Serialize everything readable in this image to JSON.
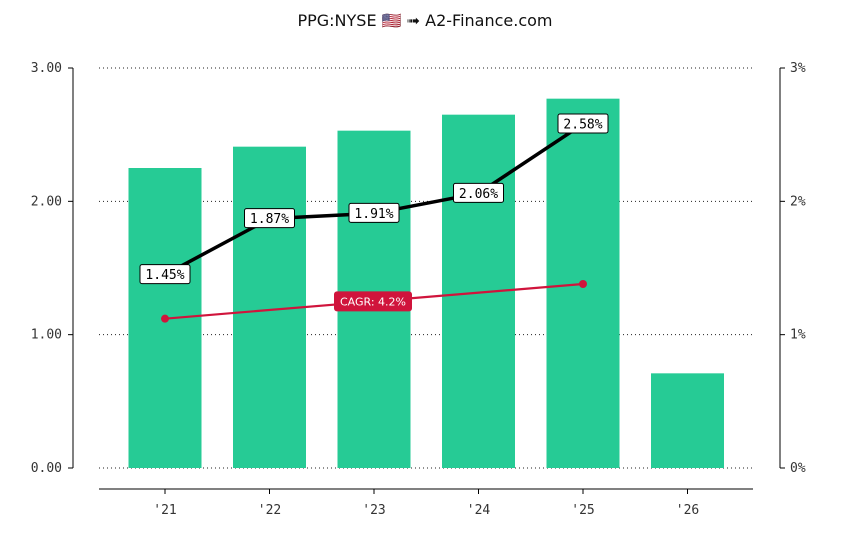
{
  "header": {
    "title": "PPG:NYSE 🇺🇸 ➟ A2-Finance.com"
  },
  "chart_data": {
    "type": "bar",
    "categories": [
      "'21",
      "'22",
      "'23",
      "'24",
      "'25",
      "'26"
    ],
    "values": [
      2.25,
      2.41,
      2.53,
      2.65,
      2.77,
      0.71
    ],
    "bar_color": "#26cb95",
    "ylim": [
      0,
      3
    ],
    "y_ticks": [
      "0.00",
      "1.00",
      "2.00",
      "3.00"
    ],
    "y2lim": [
      0,
      3
    ],
    "y2_ticks": [
      "0%",
      "1%",
      "2%",
      "3%"
    ],
    "grid": "dotted horizontal",
    "yield_line": {
      "color": "#000000",
      "points": [
        {
          "category": "'21",
          "value": 1.45,
          "label": "1.45%"
        },
        {
          "category": "'22",
          "value": 1.87,
          "label": "1.87%"
        },
        {
          "category": "'23",
          "value": 1.91,
          "label": "1.91%"
        },
        {
          "category": "'24",
          "value": 2.06,
          "label": "2.06%"
        },
        {
          "category": "'25",
          "value": 2.58,
          "label": "2.58%"
        }
      ]
    },
    "cagr_line": {
      "color": "#d0143c",
      "label": "CAGR: 4.2%",
      "start": {
        "category": "'21",
        "value": 1.12
      },
      "end": {
        "category": "'25",
        "value": 1.38
      }
    }
  }
}
